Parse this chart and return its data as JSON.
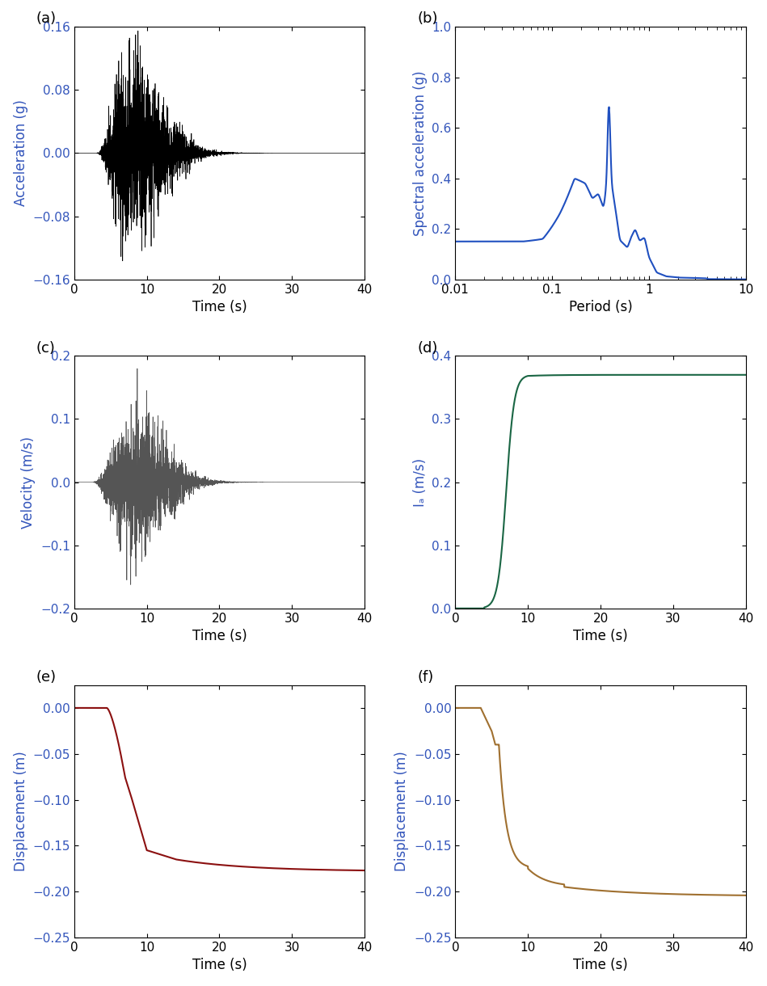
{
  "panel_labels": [
    "(a)",
    "(b)",
    "(c)",
    "(d)",
    "(e)",
    "(f)"
  ],
  "panel_a": {
    "xlabel": "Time (s)",
    "ylabel": "Acceleration (g)",
    "xlim": [
      0,
      40
    ],
    "ylim": [
      -0.16,
      0.16
    ],
    "yticks": [
      -0.16,
      -0.08,
      0.0,
      0.08,
      0.16
    ],
    "xticks": [
      0,
      10,
      20,
      30,
      40
    ],
    "color": "#000000",
    "linewidth": 0.5
  },
  "panel_b": {
    "xlabel": "Period (s)",
    "ylabel": "Spectral acceleration (g)",
    "xlim": [
      0.01,
      10
    ],
    "ylim": [
      0.0,
      1.0
    ],
    "yticks": [
      0.0,
      0.2,
      0.4,
      0.6,
      0.8,
      1.0
    ],
    "xticks_log": [
      0.01,
      0.1,
      1,
      10
    ],
    "xtick_labels": [
      "0.01",
      "0.1",
      "1",
      "10"
    ],
    "color": "#2050c0",
    "linewidth": 1.5
  },
  "panel_c": {
    "xlabel": "Time (s)",
    "ylabel": "Velocity (m/s)",
    "xlim": [
      0,
      40
    ],
    "ylim": [
      -0.2,
      0.2
    ],
    "yticks": [
      -0.2,
      -0.1,
      0.0,
      0.1,
      0.2
    ],
    "xticks": [
      0,
      10,
      20,
      30,
      40
    ],
    "color": "#555555",
    "linewidth": 0.5
  },
  "panel_d": {
    "xlabel": "Time (s)",
    "ylabel": "Iₐ (m/s)",
    "xlim": [
      0,
      40
    ],
    "ylim": [
      0.0,
      0.4
    ],
    "yticks": [
      0.0,
      0.1,
      0.2,
      0.3,
      0.4
    ],
    "xticks": [
      0,
      10,
      20,
      30,
      40
    ],
    "color": "#1a6644",
    "linewidth": 1.5
  },
  "panel_e": {
    "xlabel": "Time (s)",
    "ylabel": "Displacement (m)",
    "xlim": [
      0,
      40
    ],
    "ylim": [
      -0.25,
      0.025
    ],
    "yticks": [
      -0.25,
      -0.2,
      -0.15,
      -0.1,
      -0.05,
      0.0
    ],
    "xticks": [
      0,
      10,
      20,
      30,
      40
    ],
    "color": "#8b1010",
    "linewidth": 1.5
  },
  "panel_f": {
    "xlabel": "Time (s)",
    "ylabel": "Displacement (m)",
    "xlim": [
      0,
      40
    ],
    "ylim": [
      -0.25,
      0.025
    ],
    "yticks": [
      -0.25,
      -0.2,
      -0.15,
      -0.1,
      -0.05,
      0.0
    ],
    "xticks": [
      0,
      10,
      20,
      30,
      40
    ],
    "color": "#a07030",
    "linewidth": 1.5
  },
  "label_fontsize": 12,
  "tick_fontsize": 11,
  "panel_label_fontsize": 13,
  "ylabel_color": "#3355bb",
  "tick_color": "#000000"
}
